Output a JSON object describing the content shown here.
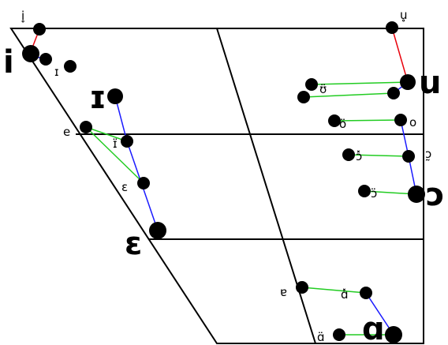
{
  "chart_data": {
    "type": "vowel-chart",
    "title": "",
    "line_colors": {
      "red": "#e8000b",
      "blue": "#1a1aff",
      "green": "#22cc22"
    },
    "labels": {
      "i_top": "i̥",
      "i_big": "i",
      "i_r": "ɪ",
      "I_big": "ɪ",
      "e_small": "e",
      "I_small": "ɪ̈",
      "eps_small": "ɛ",
      "eps_big": "ɛ",
      "u_top": "u̥",
      "u_big": "u",
      "u_small": "ʊ̈",
      "o_l": "ö",
      "o_r": "o",
      "oo_l": "ɔ̽",
      "oo_r": "ɔ̰",
      "oo_l2": "ɔ̈",
      "oo_big": "ɔ",
      "e_low": "ɐ",
      "a_star": "ɑ̽",
      "a_small": "ɑ̈",
      "a_big": "ɑ"
    }
  }
}
